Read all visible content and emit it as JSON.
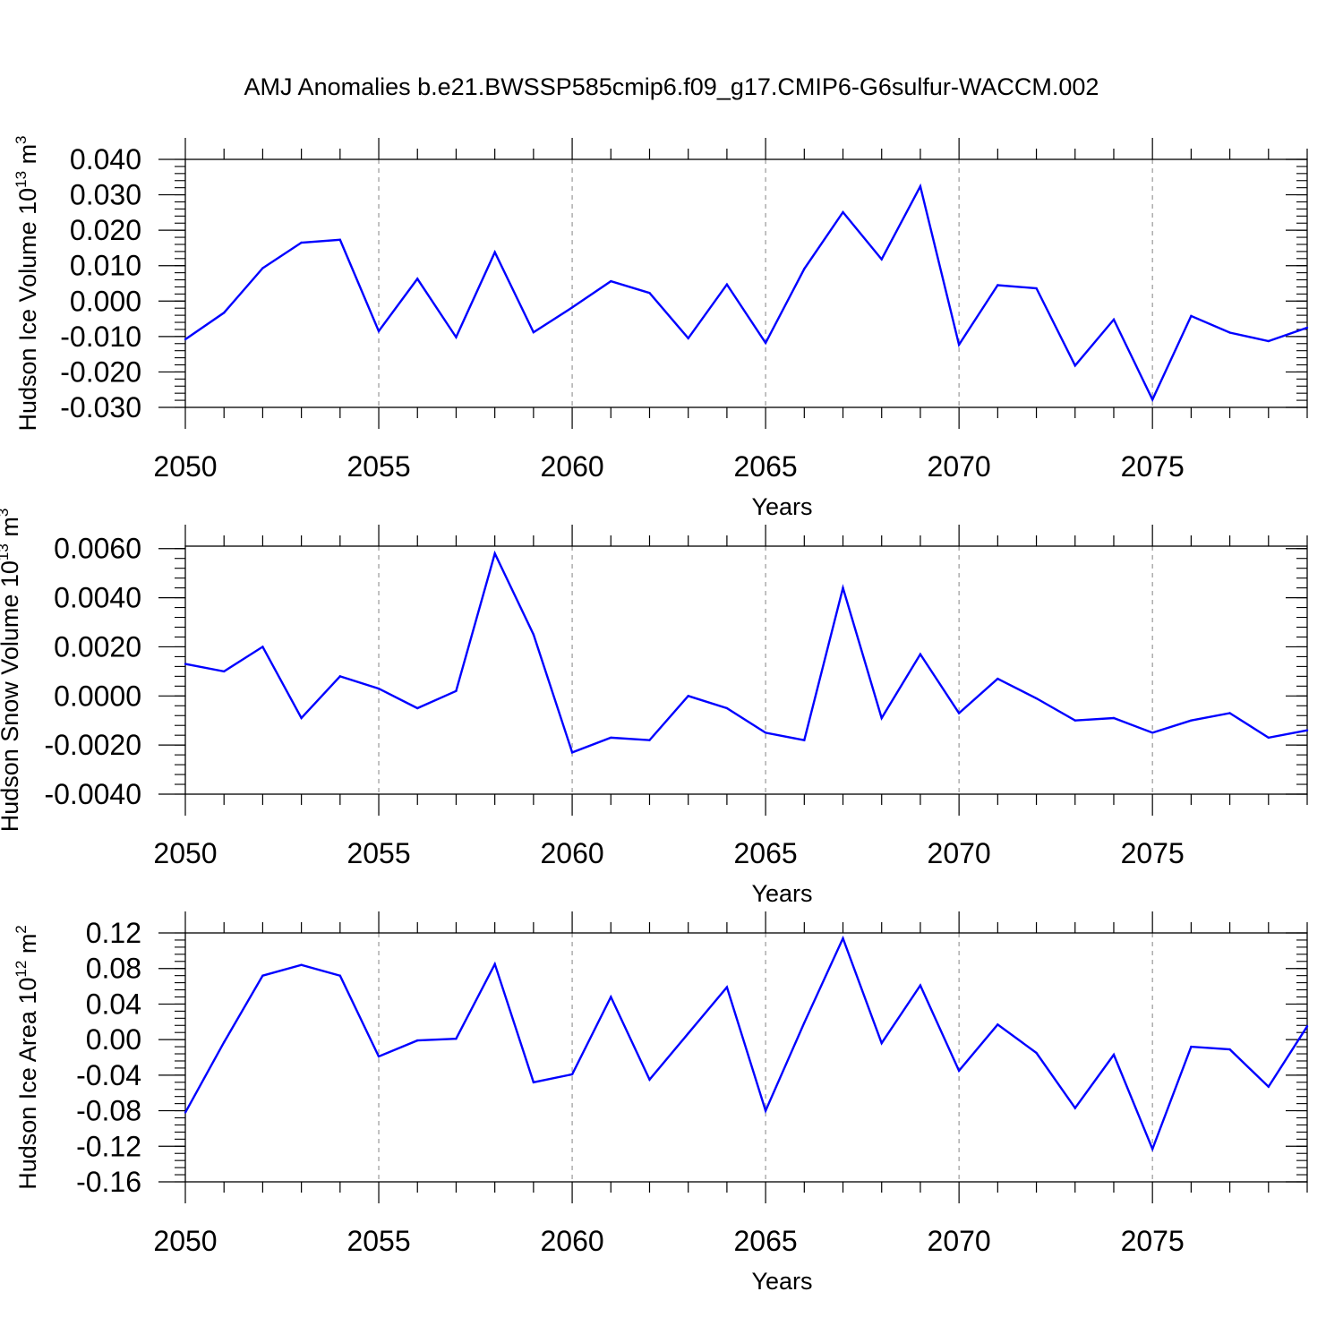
{
  "figure": {
    "title": "AMJ Anomalies b.e21.BWSSP585cmip6.f09_g17.CMIP6-G6sulfur-WACCM.002"
  },
  "colors": {
    "line": "#0000ff",
    "axis": "#000000",
    "grid": "#999999"
  },
  "chart_data": [
    {
      "type": "line",
      "xlabel": "Years",
      "ylabel_main": "Hudson Ice Volume 10",
      "ylabel_exp": "13",
      "ylabel_unit": " m",
      "ylabel_unit_exp": "3",
      "xlim": [
        2050,
        2079
      ],
      "ylim": [
        -0.03,
        0.04
      ],
      "x_ticks": [
        2050,
        2055,
        2060,
        2065,
        2070,
        2075
      ],
      "x_tick_labels": [
        "2050",
        "2055",
        "2060",
        "2065",
        "2070",
        "2075"
      ],
      "y_ticks": [
        -0.03,
        -0.02,
        -0.01,
        0.0,
        0.01,
        0.02,
        0.03,
        0.04
      ],
      "y_tick_labels": [
        "-0.030",
        "-0.020",
        "-0.010",
        "0.000",
        "0.010",
        "0.020",
        "0.030",
        "0.040"
      ],
      "y_minor_step": 0.002,
      "grid": "vertical dashed at major x ticks",
      "x": [
        2050,
        2051,
        2052,
        2053,
        2054,
        2055,
        2056,
        2057,
        2058,
        2059,
        2060,
        2061,
        2062,
        2063,
        2064,
        2065,
        2066,
        2067,
        2068,
        2069,
        2070,
        2071,
        2072,
        2073,
        2074,
        2075,
        2076,
        2077,
        2078,
        2079
      ],
      "values": [
        -0.0108,
        -0.0033,
        0.0093,
        0.0165,
        0.0173,
        -0.0085,
        0.0063,
        -0.0102,
        0.0138,
        -0.0088,
        -0.0018,
        0.0056,
        0.0023,
        -0.0105,
        0.0047,
        -0.0118,
        0.0091,
        0.0251,
        0.0118,
        0.0324,
        -0.0123,
        0.0045,
        0.0036,
        -0.0182,
        -0.0052,
        -0.0278,
        -0.0042,
        -0.0089,
        -0.0113,
        -0.0075
      ]
    },
    {
      "type": "line",
      "xlabel": "Years",
      "ylabel_main": "Hudson Snow Volume 10",
      "ylabel_exp": "13",
      "ylabel_unit": " m",
      "ylabel_unit_exp": "3",
      "xlim": [
        2050,
        2079
      ],
      "ylim": [
        -0.004,
        0.0061
      ],
      "x_ticks": [
        2050,
        2055,
        2060,
        2065,
        2070,
        2075
      ],
      "x_tick_labels": [
        "2050",
        "2055",
        "2060",
        "2065",
        "2070",
        "2075"
      ],
      "y_ticks": [
        -0.004,
        -0.002,
        0.0,
        0.002,
        0.004,
        0.006
      ],
      "y_tick_labels": [
        "-0.0040",
        "-0.0020",
        "0.0000",
        "0.0020",
        "0.0040",
        "0.0060"
      ],
      "y_minor_step": 0.0004,
      "grid": "vertical dashed at major x ticks",
      "x": [
        2050,
        2051,
        2052,
        2053,
        2054,
        2055,
        2056,
        2057,
        2058,
        2059,
        2060,
        2061,
        2062,
        2063,
        2064,
        2065,
        2066,
        2067,
        2068,
        2069,
        2070,
        2071,
        2072,
        2073,
        2074,
        2075,
        2076,
        2077,
        2078,
        2079
      ],
      "values": [
        0.0013,
        0.001,
        0.002,
        -0.0009,
        0.0008,
        0.0003,
        -0.0005,
        0.0002,
        0.0058,
        0.0025,
        -0.0023,
        -0.0017,
        -0.0018,
        0.0,
        -0.0005,
        -0.0015,
        -0.0018,
        0.0044,
        -0.0009,
        0.0017,
        -0.0007,
        0.0007,
        -0.0001,
        -0.001,
        -0.0009,
        -0.0015,
        -0.001,
        -0.0007,
        -0.0017,
        -0.0014
      ]
    },
    {
      "type": "line",
      "xlabel": "Years",
      "ylabel_main": "Hudson Ice Area 10",
      "ylabel_exp": "12",
      "ylabel_unit": " m",
      "ylabel_unit_exp": "2",
      "xlim": [
        2050,
        2079
      ],
      "ylim": [
        -0.16,
        0.12
      ],
      "x_ticks": [
        2050,
        2055,
        2060,
        2065,
        2070,
        2075
      ],
      "x_tick_labels": [
        "2050",
        "2055",
        "2060",
        "2065",
        "2070",
        "2075"
      ],
      "y_ticks": [
        -0.16,
        -0.12,
        -0.08,
        -0.04,
        0.0,
        0.04,
        0.08,
        0.12
      ],
      "y_tick_labels": [
        "-0.16",
        "-0.12",
        "-0.08",
        "-0.04",
        "0.00",
        "0.04",
        "0.08",
        "0.12"
      ],
      "y_minor_step": 0.008,
      "grid": "vertical dashed at major x ticks",
      "x": [
        2050,
        2051,
        2052,
        2053,
        2054,
        2055,
        2056,
        2057,
        2058,
        2059,
        2060,
        2061,
        2062,
        2063,
        2064,
        2065,
        2066,
        2067,
        2068,
        2069,
        2070,
        2071,
        2072,
        2073,
        2074,
        2075,
        2076,
        2077,
        2078,
        2079
      ],
      "values": [
        -0.082,
        -0.003,
        0.072,
        0.084,
        0.072,
        -0.019,
        -0.001,
        0.001,
        0.085,
        -0.048,
        -0.039,
        0.048,
        -0.045,
        0.007,
        0.059,
        -0.08,
        0.019,
        0.114,
        -0.004,
        0.061,
        -0.035,
        0.017,
        -0.015,
        -0.077,
        -0.017,
        -0.123,
        -0.008,
        -0.011,
        -0.053,
        0.015
      ]
    }
  ]
}
